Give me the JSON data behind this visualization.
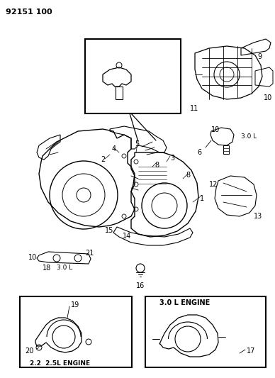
{
  "title": "92151 100",
  "background_color": "#ffffff",
  "fig_width": 3.88,
  "fig_height": 5.33,
  "dpi": 100
}
